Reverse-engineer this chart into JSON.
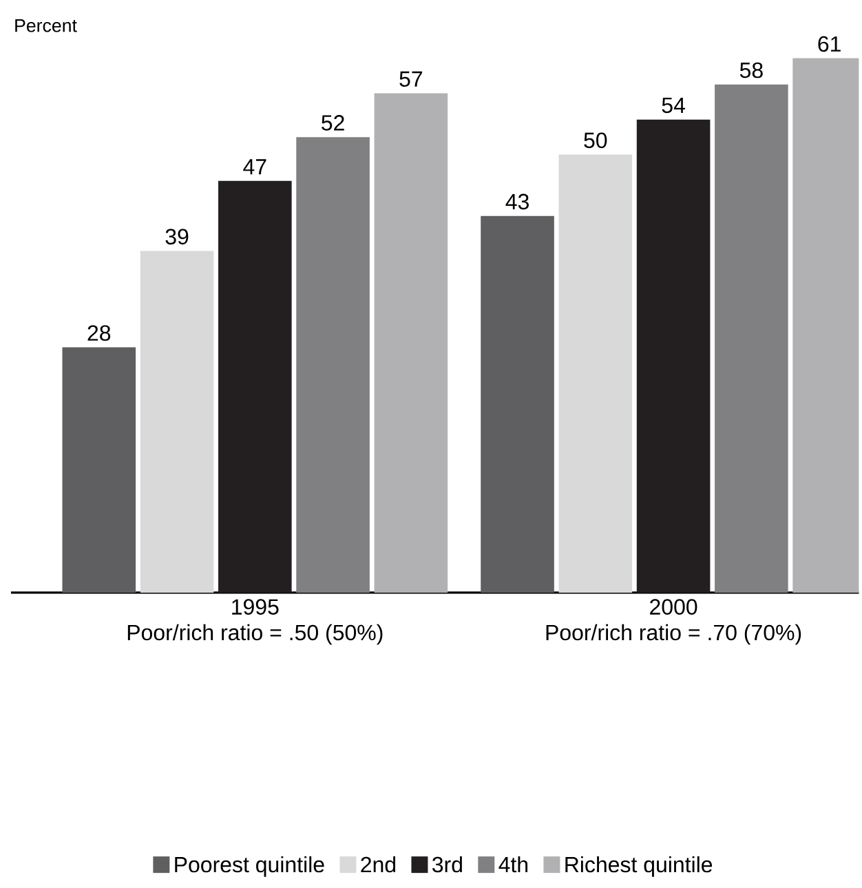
{
  "chart_data": {
    "type": "bar",
    "ylabel": "Percent",
    "categories": [
      "1995",
      "2000"
    ],
    "annotations": [
      "Poor/rich ratio = .50 (50%)",
      "Poor/rich ratio = .70 (70%)"
    ],
    "series": [
      {
        "name": "Poorest quintile",
        "color": "#5f5f61",
        "values": [
          28,
          43
        ]
      },
      {
        "name": "2nd",
        "color": "#d9d9da",
        "values": [
          39,
          50
        ]
      },
      {
        "name": "3rd",
        "color": "#231f20",
        "values": [
          47,
          54
        ]
      },
      {
        "name": "4th",
        "color": "#808083",
        "values": [
          52,
          58
        ]
      },
      {
        "name": "Richest quintile",
        "color": "#b1b1b3",
        "values": [
          57,
          61
        ]
      }
    ],
    "data_labels": true,
    "legend": "bottom"
  }
}
